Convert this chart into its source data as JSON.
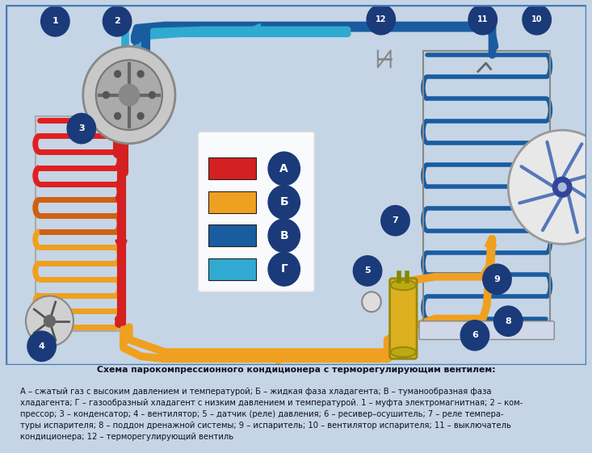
{
  "bg_color": "#c5d5e5",
  "diagram_bg": "#ffffff",
  "border_color": "#4a7ab5",
  "title_text": "Схема парокомпрессионного кондиционера с терморегулирующим вентилем:",
  "caption_lines": [
    "А – сжатый газ с высоким давлением и температурой; Б – жидкая фаза хладагента; В – туманообразная фаза",
    "хладагента; Г – газообразный хладагент с низким давлением и температурой. 1 – муфта электромагнитная; 2 – ком-",
    "прессор; 3 – конденсатор; 4 – вентилятор; 5 – датчик (реле) давления; 6 – ресивер–осушитель; 7 – реле темпера-",
    "туры испарителя; 8 – поддон дренажной системы; 9 – испаритель; 10 – вентилятор испарителя; 11 – выключатель",
    "кондиционера; 12 – терморегулирующий вентиль"
  ],
  "legend_items": [
    {
      "label": "А",
      "color": "#d42020"
    },
    {
      "label": "Б",
      "color": "#f0a020"
    },
    {
      "label": "В",
      "color": "#1a5ca0"
    },
    {
      "label": "Г",
      "color": "#30aad0"
    }
  ],
  "circle_color": "#1a3a7a",
  "circle_text_color": "#ffffff",
  "col_A": "#d42020",
  "col_B": "#f0a020",
  "col_C": "#1a5ca0",
  "col_D": "#30aad0"
}
